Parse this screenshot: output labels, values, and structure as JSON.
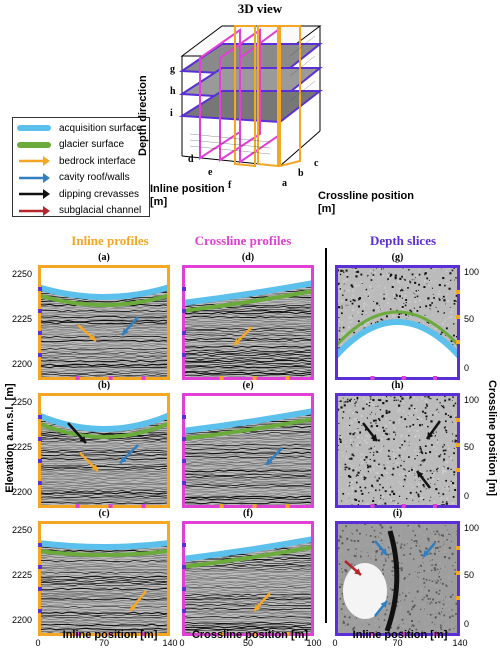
{
  "view3d": {
    "title": "3D view",
    "depth_axis_label": "Depth direction",
    "inline_axis_label": "Inline position [m]",
    "crossline_axis_label": "Crossline position [m]",
    "depth_slice_letters": [
      "g",
      "h",
      "i"
    ],
    "inline_letters": [
      "d",
      "e",
      "f"
    ],
    "crossline_letters": [
      "a",
      "b",
      "c"
    ]
  },
  "legend": [
    {
      "label": "acquisition surface",
      "color": "#5bc0eb",
      "kind": "line"
    },
    {
      "label": "glacier surface",
      "color": "#6aab3b",
      "kind": "line"
    },
    {
      "label": "bedrock interface",
      "color": "#f5a623",
      "kind": "arrow"
    },
    {
      "label": "cavity roof/walls",
      "color": "#2f7fc1",
      "kind": "arrow"
    },
    {
      "label": "dipping crevasses",
      "color": "#111111",
      "kind": "arrow"
    },
    {
      "label": "subglacial channel",
      "color": "#b5262b",
      "kind": "arrow"
    }
  ],
  "columns": {
    "inline": {
      "title": "Inline profiles",
      "color": "#f5a623",
      "xlabel": "Inline position [m]",
      "xticks": [
        "0",
        "70",
        "140"
      ]
    },
    "crossline": {
      "title": "Crossline profiles",
      "color": "#e040d6",
      "xlabel": "Crossline position [m]",
      "xticks": [
        "0",
        "50",
        "100"
      ]
    },
    "depth": {
      "title": "Depth slices",
      "color": "#5b2fd6",
      "xlabel": "Inline position [m]",
      "xticks": [
        "0",
        "70",
        "140"
      ],
      "ylabel": "Crossline position [m]",
      "yticks": [
        "100",
        "50",
        "0"
      ]
    }
  },
  "ylabel_left": "Elevation a.m.s.l. [m]",
  "elev_ticks": [
    "2250",
    "2225",
    "2200"
  ],
  "panel_labels": {
    "a": "(a)",
    "b": "(b)",
    "c": "(c)",
    "d": "(d)",
    "e": "(e)",
    "f": "(f)",
    "g": "(g)",
    "h": "(h)",
    "i": "(i)"
  }
}
